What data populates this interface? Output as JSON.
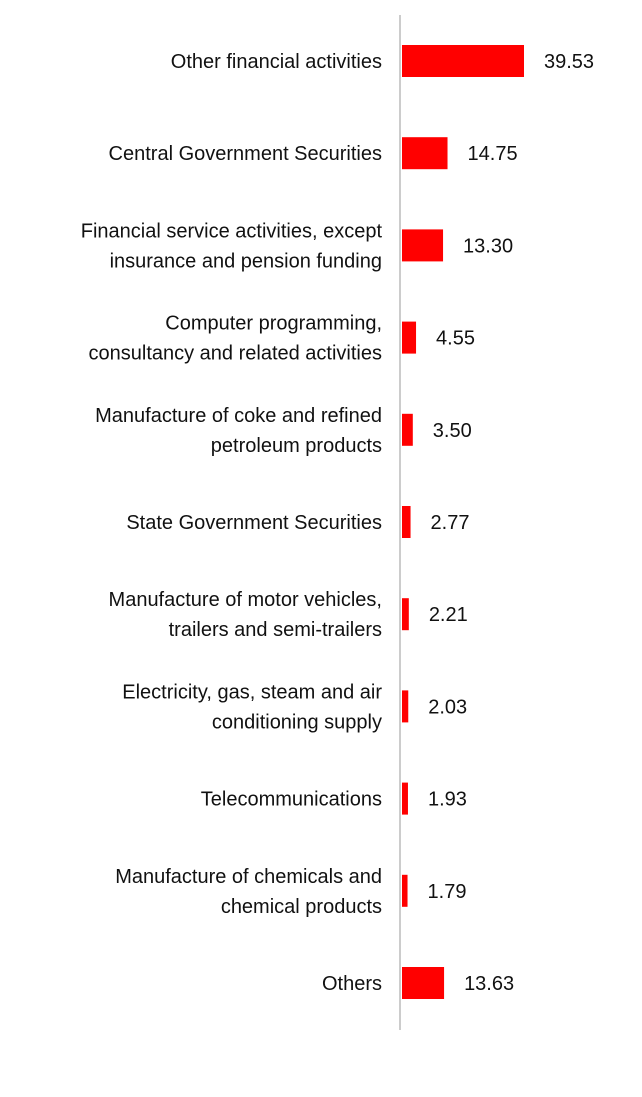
{
  "chart_data": {
    "type": "bar",
    "orientation": "horizontal",
    "title": "",
    "xlabel": "",
    "ylabel": "",
    "grid": false,
    "legend": "none",
    "bar_color": "#ff0000",
    "axis_color": "#cccccc",
    "categories": [
      [
        "Other financial activities"
      ],
      [
        "Central Government Securities"
      ],
      [
        "Financial service activities, except",
        "insurance and pension funding"
      ],
      [
        "Computer programming,",
        "consultancy and related activities"
      ],
      [
        "Manufacture of coke and refined",
        "petroleum products"
      ],
      [
        "State Government Securities"
      ],
      [
        "Manufacture of motor vehicles,",
        "trailers and semi-trailers"
      ],
      [
        "Electricity, gas, steam and air",
        "conditioning supply"
      ],
      [
        "Telecommunications"
      ],
      [
        "Manufacture of chemicals and",
        "chemical products"
      ],
      [
        "Others"
      ]
    ],
    "values": [
      39.53,
      14.75,
      13.3,
      4.55,
      3.5,
      2.77,
      2.21,
      2.03,
      1.93,
      1.79,
      13.63
    ],
    "value_labels": [
      "39.53",
      "14.75",
      "13.30",
      "4.55",
      "3.50",
      "2.77",
      "2.21",
      "2.03",
      "1.93",
      "1.79",
      "13.63"
    ]
  }
}
